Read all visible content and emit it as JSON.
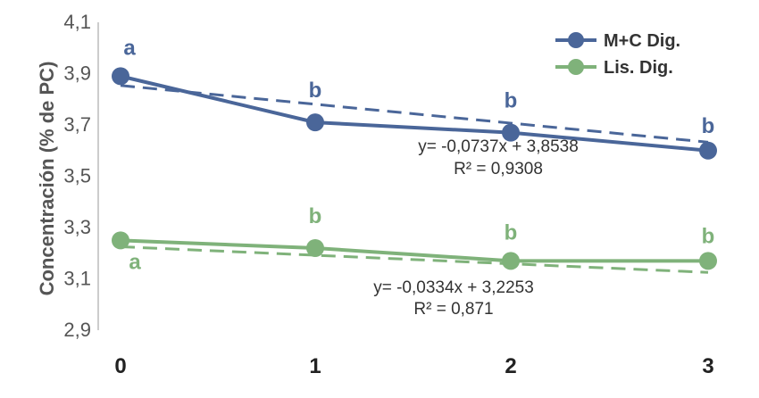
{
  "chart_data": {
    "type": "line",
    "xlabel": "",
    "ylabel": "Concentración (% de PC)",
    "categories": [
      "0",
      "1",
      "2",
      "3"
    ],
    "yticks": [
      "4,1",
      "3,9",
      "3,7",
      "3,5",
      "3,3",
      "3,1",
      "2,9"
    ],
    "ylim": [
      2.9,
      4.1
    ],
    "legend_position": "top-right",
    "series": [
      {
        "name": "M+C Dig.",
        "color": "#4a6699",
        "values": [
          3.89,
          3.71,
          3.67,
          3.6
        ],
        "letters": [
          "a",
          "b",
          "b",
          "b"
        ],
        "trend": {
          "slope": -0.0737,
          "intercept": 3.8538
        },
        "equation": "y= -0,0737x + 3,8538",
        "r2": "R² = 0,9308"
      },
      {
        "name": "Lis. Dig.",
        "color": "#7fb27a",
        "values": [
          3.25,
          3.22,
          3.17,
          3.17
        ],
        "letters": [
          "a",
          "b",
          "b",
          "b"
        ],
        "trend": {
          "slope": -0.0334,
          "intercept": 3.2253
        },
        "equation": "y= -0,0334x + 3,2253",
        "r2": "R² = 0,871"
      }
    ]
  }
}
